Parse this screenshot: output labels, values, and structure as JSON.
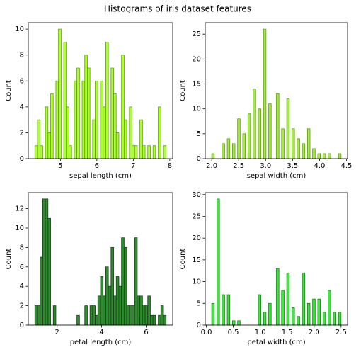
{
  "title": "Histograms of iris dataset features",
  "chart_data": [
    {
      "type": "histogram",
      "xlabel": "sepal length (cm)",
      "ylabel": "Count",
      "color": "#adff2f",
      "edgecolor": "#5f9e10",
      "bins": [
        4.3,
        4.372,
        4.444,
        4.516,
        4.588,
        4.66,
        4.732,
        4.804,
        4.876,
        4.948,
        5.02,
        5.092,
        5.164,
        5.236,
        5.308,
        5.38,
        5.452,
        5.524,
        5.596,
        5.668,
        5.74,
        5.812,
        5.884,
        5.956,
        6.028,
        6.1,
        6.172,
        6.244,
        6.316,
        6.388,
        6.46,
        6.532,
        6.604,
        6.676,
        6.748,
        6.82,
        6.892,
        6.964,
        7.036,
        7.108,
        7.18,
        7.252,
        7.324,
        7.396,
        7.468,
        7.54,
        7.612,
        7.684,
        7.756,
        7.828,
        7.9
      ],
      "counts": [
        1,
        3,
        1,
        0,
        4,
        2,
        5,
        0,
        6,
        10,
        0,
        9,
        4,
        1,
        0,
        6,
        7,
        0,
        6,
        8,
        7,
        0,
        3,
        6,
        0,
        6,
        4,
        9,
        0,
        7,
        5,
        2,
        0,
        8,
        3,
        0,
        4,
        1,
        1,
        0,
        3,
        1,
        0,
        1,
        0,
        1,
        0,
        4,
        0,
        1
      ],
      "xlim": [
        4.12,
        8.08
      ],
      "xticks": [
        5,
        6,
        7,
        8
      ],
      "ylim": [
        0,
        10.5
      ],
      "yticks": [
        0,
        2,
        4,
        6,
        8,
        10
      ]
    },
    {
      "type": "histogram",
      "xlabel": "sepal width (cm)",
      "ylabel": "Count",
      "color": "#a6e84a",
      "edgecolor": "#5f9e10",
      "bins": [
        2,
        2.048,
        2.096,
        2.144,
        2.192,
        2.24,
        2.288,
        2.336,
        2.384,
        2.432,
        2.48,
        2.528,
        2.576,
        2.624,
        2.672,
        2.72,
        2.768,
        2.816,
        2.864,
        2.912,
        2.96,
        3.008,
        3.056,
        3.104,
        3.152,
        3.2,
        3.248,
        3.296,
        3.344,
        3.392,
        3.44,
        3.488,
        3.536,
        3.584,
        3.632,
        3.68,
        3.728,
        3.776,
        3.824,
        3.872,
        3.92,
        3.968,
        4.016,
        4.064,
        4.112,
        4.16,
        4.208,
        4.256,
        4.304,
        4.352,
        4.4
      ],
      "counts": [
        1,
        0,
        0,
        0,
        3,
        0,
        4,
        0,
        3,
        0,
        8,
        0,
        5,
        0,
        9,
        0,
        14,
        0,
        10,
        0,
        26,
        0,
        11,
        0,
        0,
        13,
        0,
        6,
        0,
        12,
        0,
        6,
        0,
        4,
        0,
        3,
        0,
        6,
        0,
        2,
        0,
        1,
        0,
        1,
        0,
        1,
        0,
        0,
        0,
        1
      ],
      "xlim": [
        1.88,
        4.52
      ],
      "xticks": [
        {
          "value": 2,
          "label": "2.0"
        },
        2.5,
        {
          "value": 3,
          "label": "3.0"
        },
        3.5,
        {
          "value": 4,
          "label": "4.0"
        },
        4.5
      ],
      "ylim": [
        0,
        27.3
      ],
      "yticks": [
        0,
        5,
        10,
        15,
        20,
        25
      ]
    },
    {
      "type": "histogram",
      "xlabel": "petal length (cm)",
      "ylabel": "Count",
      "color": "#2e8b2e",
      "edgecolor": "#1a3d1a",
      "bins": [
        1,
        1.118,
        1.236,
        1.354,
        1.472,
        1.59,
        1.708,
        1.826,
        1.944,
        2.062,
        2.18,
        2.298,
        2.416,
        2.534,
        2.652,
        2.77,
        2.888,
        3.006,
        3.124,
        3.242,
        3.36,
        3.478,
        3.596,
        3.714,
        3.832,
        3.95,
        4.068,
        4.186,
        4.304,
        4.422,
        4.54,
        4.658,
        4.776,
        4.894,
        5.012,
        5.13,
        5.248,
        5.366,
        5.484,
        5.602,
        5.72,
        5.838,
        5.956,
        6.074,
        6.192,
        6.31,
        6.428,
        6.546,
        6.664,
        6.782,
        6.9
      ],
      "counts": [
        2,
        2,
        7,
        13,
        13,
        11,
        0,
        2,
        0,
        0,
        0,
        0,
        0,
        0,
        0,
        0,
        1,
        0,
        0,
        2,
        0,
        2,
        2,
        1,
        3,
        5,
        3,
        6,
        4,
        8,
        3,
        5,
        4,
        9,
        8,
        2,
        2,
        2,
        9,
        3,
        3,
        2,
        2,
        3,
        1,
        1,
        0,
        1,
        2,
        1
      ],
      "xlim": [
        0.705,
        7.195
      ],
      "xticks": [
        2,
        4,
        6
      ],
      "ylim": [
        0,
        13.65
      ],
      "yticks": [
        0,
        2,
        4,
        6,
        8,
        10,
        12
      ]
    },
    {
      "type": "histogram",
      "xlabel": "petal width (cm)",
      "ylabel": "Count",
      "color": "#3be83b",
      "edgecolor": "#1f7a1f",
      "bins": [
        0.1,
        0.148,
        0.196,
        0.244,
        0.292,
        0.34,
        0.388,
        0.436,
        0.484,
        0.532,
        0.58,
        0.628,
        0.676,
        0.724,
        0.772,
        0.82,
        0.868,
        0.916,
        0.964,
        1.012,
        1.06,
        1.108,
        1.156,
        1.204,
        1.252,
        1.3,
        1.348,
        1.396,
        1.444,
        1.492,
        1.54,
        1.588,
        1.636,
        1.684,
        1.732,
        1.78,
        1.828,
        1.876,
        1.924,
        1.972,
        2.02,
        2.068,
        2.116,
        2.164,
        2.212,
        2.26,
        2.308,
        2.356,
        2.404,
        2.452,
        2.5
      ],
      "counts": [
        5,
        0,
        29,
        0,
        7,
        0,
        7,
        0,
        1,
        0,
        1,
        0,
        0,
        0,
        0,
        0,
        0,
        0,
        7,
        0,
        3,
        0,
        5,
        0,
        0,
        13,
        0,
        8,
        0,
        12,
        0,
        4,
        0,
        2,
        0,
        12,
        0,
        5,
        0,
        6,
        0,
        6,
        0,
        3,
        0,
        8,
        0,
        3,
        0,
        3
      ],
      "xlim": [
        -0.02,
        2.62
      ],
      "xticks": [
        {
          "value": 0,
          "label": "0.0"
        },
        0.5,
        {
          "value": 1,
          "label": "1.0"
        },
        1.5,
        {
          "value": 2,
          "label": "2.0"
        },
        2.5
      ],
      "ylim": [
        0,
        30.45
      ],
      "yticks": [
        0,
        5,
        10,
        15,
        20,
        25,
        30
      ]
    }
  ]
}
